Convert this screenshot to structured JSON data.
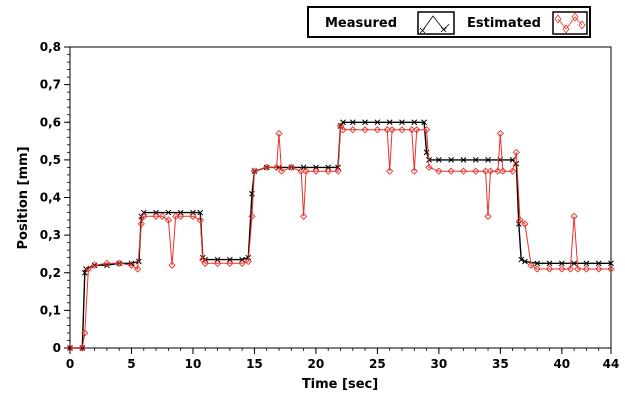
{
  "chart_data": {
    "type": "line",
    "title": "",
    "xlabel": "Time [sec]",
    "ylabel": "Position [mm]",
    "xlim": [
      0,
      44
    ],
    "ylim": [
      0,
      0.8
    ],
    "xticks": [
      0,
      5,
      10,
      15,
      20,
      25,
      30,
      35,
      40,
      44
    ],
    "xtick_labels": [
      "0",
      "5",
      "10",
      "15",
      "20",
      "25",
      "30",
      "35",
      "40",
      "44"
    ],
    "yticks": [
      0,
      0.1,
      0.2,
      0.3,
      0.4,
      0.5,
      0.6,
      0.7,
      0.8
    ],
    "ytick_labels": [
      "0",
      "0,1",
      "0,2",
      "0,3",
      "0,4",
      "0,5",
      "0,6",
      "0,7",
      "0,8"
    ],
    "grid": false,
    "legend_position": "top-right",
    "series": [
      {
        "name": "Measured",
        "color": "#000000",
        "marker": "x",
        "x": [
          0,
          1.0,
          1.2,
          1.3,
          2.0,
          3.0,
          4.0,
          5.0,
          5.6,
          5.8,
          6.0,
          7.0,
          8.0,
          9.0,
          10.0,
          10.6,
          10.8,
          11.0,
          12.0,
          13.0,
          14.0,
          14.5,
          14.8,
          15.0,
          16.0,
          17.0,
          18.0,
          19.0,
          20.0,
          21.0,
          21.8,
          22.0,
          22.2,
          23.0,
          24.0,
          25.0,
          26.0,
          27.0,
          28.0,
          28.8,
          29.0,
          29.2,
          30.0,
          31.0,
          32.0,
          33.0,
          34.0,
          35.0,
          36.0,
          36.3,
          36.5,
          36.7,
          37.0,
          38.0,
          39.0,
          40.0,
          41.0,
          42.0,
          43.0,
          44.0
        ],
        "y": [
          0.0,
          0.0,
          0.2,
          0.21,
          0.22,
          0.22,
          0.225,
          0.225,
          0.23,
          0.35,
          0.36,
          0.36,
          0.36,
          0.36,
          0.36,
          0.36,
          0.24,
          0.235,
          0.235,
          0.235,
          0.235,
          0.24,
          0.41,
          0.47,
          0.48,
          0.48,
          0.48,
          0.48,
          0.48,
          0.48,
          0.48,
          0.59,
          0.6,
          0.6,
          0.6,
          0.6,
          0.6,
          0.6,
          0.6,
          0.6,
          0.52,
          0.5,
          0.5,
          0.5,
          0.5,
          0.5,
          0.5,
          0.5,
          0.5,
          0.49,
          0.33,
          0.235,
          0.23,
          0.225,
          0.225,
          0.225,
          0.225,
          0.225,
          0.225,
          0.225
        ]
      },
      {
        "name": "Estimated",
        "color": "#e8332c",
        "marker": "diamond",
        "x": [
          0,
          1.0,
          1.2,
          1.5,
          2.0,
          3.0,
          4.0,
          5.0,
          5.5,
          5.8,
          6.0,
          7.0,
          7.5,
          8.0,
          8.3,
          8.6,
          9.0,
          10.0,
          10.6,
          10.8,
          11.0,
          12.0,
          13.0,
          14.0,
          14.5,
          14.8,
          15.0,
          16.0,
          16.8,
          17.0,
          17.2,
          18.0,
          18.8,
          19.0,
          19.2,
          20.0,
          21.0,
          21.8,
          22.0,
          22.2,
          23.0,
          24.0,
          25.0,
          25.8,
          26.0,
          26.2,
          27.0,
          27.8,
          28.0,
          28.2,
          29.0,
          29.2,
          30.0,
          31.0,
          32.0,
          33.0,
          33.8,
          34.0,
          34.2,
          34.8,
          35.0,
          35.2,
          36.0,
          36.3,
          36.6,
          37.0,
          37.5,
          38.0,
          39.0,
          40.0,
          40.7,
          41.0,
          41.3,
          42.0,
          43.0,
          44.0
        ],
        "y": [
          0.0,
          0.0,
          0.04,
          0.21,
          0.22,
          0.225,
          0.225,
          0.22,
          0.21,
          0.33,
          0.35,
          0.35,
          0.35,
          0.34,
          0.22,
          0.35,
          0.35,
          0.35,
          0.34,
          0.235,
          0.225,
          0.225,
          0.225,
          0.225,
          0.23,
          0.35,
          0.47,
          0.48,
          0.48,
          0.57,
          0.47,
          0.48,
          0.47,
          0.35,
          0.47,
          0.47,
          0.47,
          0.47,
          0.59,
          0.58,
          0.58,
          0.58,
          0.58,
          0.58,
          0.47,
          0.58,
          0.58,
          0.58,
          0.47,
          0.58,
          0.58,
          0.48,
          0.47,
          0.47,
          0.47,
          0.47,
          0.47,
          0.35,
          0.47,
          0.47,
          0.57,
          0.47,
          0.47,
          0.52,
          0.34,
          0.33,
          0.22,
          0.21,
          0.21,
          0.21,
          0.21,
          0.35,
          0.21,
          0.21,
          0.21,
          0.21
        ]
      }
    ]
  }
}
